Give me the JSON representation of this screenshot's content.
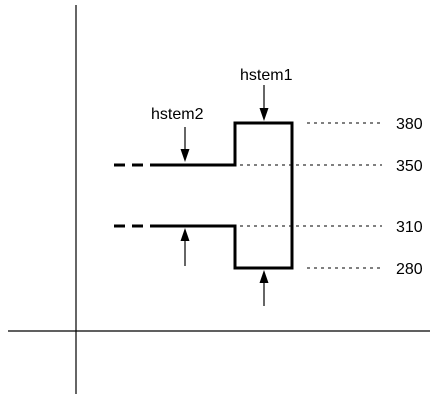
{
  "labels": {
    "hstem1": "hstem1",
    "hstem2": "hstem2"
  },
  "levels": [
    "380",
    "350",
    "310",
    "280"
  ],
  "colors": {
    "ink": "#000000",
    "background": "#ffffff"
  }
}
